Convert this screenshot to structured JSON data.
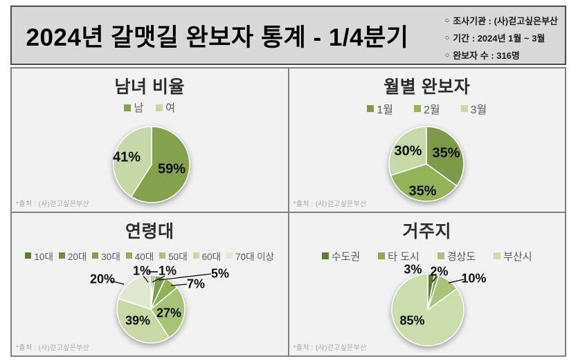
{
  "header": {
    "title": "2024년 갈맷길 완보자 통계 - 1/4분기",
    "info": [
      {
        "bullet": "○",
        "text": "조사기관 : (사)걷고싶은부산"
      },
      {
        "bullet": "○",
        "text": "기간 : 2024년 1월 ~ 3월"
      },
      {
        "bullet": "○",
        "text": "완보자 수 : 316명"
      }
    ]
  },
  "chart_data": [
    {
      "type": "pie",
      "title": "남녀 비율",
      "legend_position": "top",
      "categories": [
        "남",
        "여"
      ],
      "values": [
        59,
        41
      ],
      "labels": [
        "59%",
        "41%"
      ],
      "colors": [
        "#84a14e",
        "#c6d8a6"
      ],
      "source": "*출처 : (사)걷고싶은부산"
    },
    {
      "type": "pie",
      "title": "월별 완보자",
      "legend_position": "top",
      "categories": [
        "1월",
        "2월",
        "3월"
      ],
      "values": [
        35,
        35,
        30
      ],
      "labels": [
        "35%",
        "35%",
        "30%"
      ],
      "colors": [
        "#7d9a49",
        "#93b359",
        "#c8d9a8"
      ],
      "source": "*출처 : (사)걷고싶은부산"
    },
    {
      "type": "pie",
      "title": "연령대",
      "legend_position": "top",
      "categories": [
        "10대",
        "20대",
        "30대",
        "40대",
        "50대",
        "60대",
        "70대 이상"
      ],
      "values": [
        1,
        1,
        5,
        7,
        27,
        39,
        20
      ],
      "labels": [
        "1%",
        "1%",
        "5%",
        "7%",
        "27%",
        "39%",
        "20%"
      ],
      "colors": [
        "#5a7a33",
        "#6c8c3e",
        "#7e9e49",
        "#90b054",
        "#a6c377",
        "#c9d9a6",
        "#e0e9d0"
      ],
      "source": "*출처 : (사)걷고싶은부산"
    },
    {
      "type": "pie",
      "title": "거주지",
      "legend_position": "top",
      "categories": [
        "수도권",
        "타 도시",
        "경상도",
        "부산시"
      ],
      "values": [
        3,
        2,
        10,
        85
      ],
      "labels": [
        "3%",
        "2%",
        "10%",
        "85%"
      ],
      "colors": [
        "#5d7c33",
        "#8aab51",
        "#a9c479",
        "#cbdcad"
      ],
      "source": "*출처 : (사)걷고싶은부산"
    }
  ]
}
